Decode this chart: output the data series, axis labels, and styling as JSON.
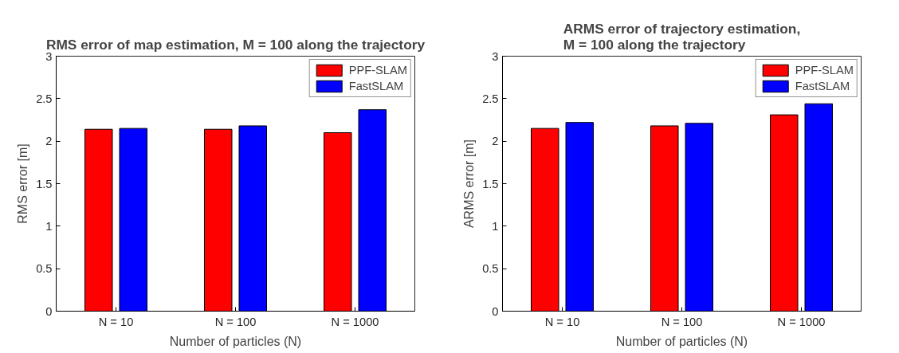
{
  "chart_data": [
    {
      "type": "bar",
      "title": "RMS error of map estimation, M = 100 along the trajectory",
      "xlabel": "Number of particles (N)",
      "ylabel": "RMS error [m]",
      "categories": [
        "N = 10",
        "N = 100",
        "N = 1000"
      ],
      "series": [
        {
          "name": "PPF-SLAM",
          "color": "#ff0000",
          "values": [
            2.14,
            2.14,
            2.1
          ]
        },
        {
          "name": "FastSLAM",
          "color": "#0000ff",
          "values": [
            2.15,
            2.18,
            2.37
          ]
        }
      ],
      "ylim": [
        0,
        3
      ],
      "yticks": [
        0,
        0.5,
        1,
        1.5,
        2,
        2.5,
        3
      ],
      "grid": false,
      "legend": "top right"
    },
    {
      "type": "bar",
      "title": "ARMS error of trajectory estimation,\nM = 100 along the trajectory",
      "xlabel": "Number of particles (N)",
      "ylabel": "ARMS error [m]",
      "categories": [
        "N = 10",
        "N = 100",
        "N = 1000"
      ],
      "series": [
        {
          "name": "PPF-SLAM",
          "color": "#ff0000",
          "values": [
            2.15,
            2.18,
            2.31
          ]
        },
        {
          "name": "FastSLAM",
          "color": "#0000ff",
          "values": [
            2.22,
            2.21,
            2.44
          ]
        }
      ],
      "ylim": [
        0,
        3
      ],
      "yticks": [
        0,
        0.5,
        1,
        1.5,
        2,
        2.5,
        3
      ],
      "grid": false,
      "legend": "top right"
    }
  ]
}
